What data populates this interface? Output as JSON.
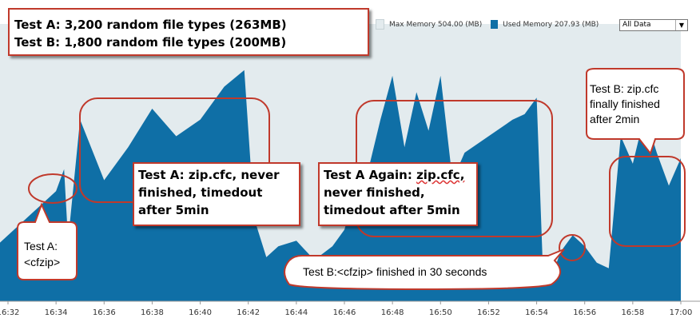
{
  "header": {
    "test_a_line": "Test A: 3,200 random file types (263MB)",
    "test_b_line": "Test B: 1,800 random file types (200MB)"
  },
  "legend": {
    "max_memory_label": "Max Memory 504.00 (MB)",
    "used_memory_label": "Used Memory 207.93 (MB)",
    "max_memory_color": "#e3ebee",
    "used_memory_color": "#0f6fa6"
  },
  "range_select": {
    "value": "All Data",
    "arrow": "▼"
  },
  "annotations": {
    "test_a_cfzip": [
      "Test A:",
      "<cfzip>"
    ],
    "test_a_zipcfc": [
      "Test A: zip.cfc, never",
      "finished, timedout",
      "after 5min"
    ],
    "test_a_again_prefix": "Test A Again: ",
    "test_a_again_word": "zip.cfc,",
    "test_a_again_rest": [
      "never finished,",
      "timedout after 5min"
    ],
    "test_b_cfzip": "Test B:<cfzip> finished in 30 seconds",
    "test_b_zipcfc": [
      "Test B: zip.cfc",
      "finally finished",
      "after 2min"
    ]
  },
  "chart_data": {
    "type": "area",
    "x_ticks": [
      "16:32",
      "16:34",
      "16:36",
      "16:38",
      "16:40",
      "16:42",
      "16:44",
      "16:46",
      "16:48",
      "16:50",
      "16:52",
      "16:54",
      "16:56",
      "16:58",
      "17:00"
    ],
    "ylim": [
      0,
      504
    ],
    "grid": false,
    "legend_position": "top-right",
    "series": [
      {
        "name": "Max Memory",
        "color": "#e3ebee",
        "x": [
          "16:31:30",
          "16:34:35",
          "16:34:40",
          "16:42:30",
          "16:42:40",
          "16:45:20",
          "16:45:30",
          "16:47:05",
          "16:47:10",
          "16:54:20",
          "16:54:35",
          "16:57:00",
          "16:57:10",
          "17:00:00"
        ],
        "values": [
          504,
          504,
          504,
          504,
          450,
          450,
          504,
          504,
          504,
          504,
          504,
          504,
          504,
          504
        ]
      },
      {
        "name": "Used Memory",
        "color": "#0f6fa6",
        "x": [
          "16:31:30",
          "16:33:00",
          "16:34:00",
          "16:34:20",
          "16:34:30",
          "16:35:00",
          "16:36:00",
          "16:37:00",
          "16:38:00",
          "16:39:00",
          "16:40:00",
          "16:41:00",
          "16:41:50",
          "16:42:15",
          "16:42:45",
          "16:43:15",
          "16:44:00",
          "16:44:45",
          "16:45:30",
          "16:46:00",
          "16:46:40",
          "16:47:00",
          "16:47:30",
          "16:48:00",
          "16:48:30",
          "16:49:00",
          "16:49:30",
          "16:50:00",
          "16:50:30",
          "16:51:00",
          "16:52:00",
          "16:53:00",
          "16:53:30",
          "16:54:00",
          "16:54:15",
          "16:54:30",
          "16:55:00",
          "16:55:30",
          "16:56:00",
          "16:56:30",
          "16:57:00",
          "16:57:30",
          "16:58:00",
          "16:58:30",
          "16:59:00",
          "16:59:30",
          "17:00:00"
        ],
        "values": [
          100,
          160,
          200,
          240,
          110,
          330,
          220,
          280,
          350,
          300,
          330,
          390,
          420,
          150,
          80,
          100,
          110,
          75,
          100,
          130,
          230,
          240,
          330,
          410,
          280,
          380,
          310,
          410,
          220,
          270,
          300,
          330,
          340,
          370,
          70,
          30,
          90,
          120,
          100,
          70,
          60,
          300,
          250,
          340,
          270,
          210,
          260
        ]
      }
    ]
  }
}
